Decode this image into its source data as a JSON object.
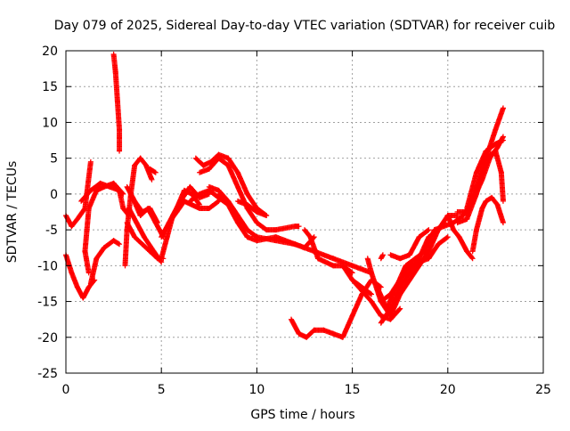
{
  "chart_data": {
    "type": "scatter",
    "title": "Day 079 of 2025, Sidereal Day-to-day VTEC variation (SDTVAR) for receiver cuib",
    "xlabel": "GPS time / hours",
    "ylabel": "SDTVAR / TECUs",
    "xlim": [
      0,
      25
    ],
    "ylim": [
      -25,
      20
    ],
    "xticks": [
      0,
      5,
      10,
      15,
      20,
      25
    ],
    "yticks": [
      -25,
      -20,
      -15,
      -10,
      -5,
      0,
      5,
      10,
      15,
      20
    ],
    "grid": true,
    "marker": "plus",
    "series_color": "#ff0000",
    "tracks": [
      [
        [
          0,
          -3
        ],
        [
          0.3,
          -4.5
        ],
        [
          0.6,
          -3.5
        ],
        [
          1.0,
          -2
        ],
        [
          1.3,
          4.5
        ]
      ],
      [
        [
          0,
          -8.5
        ],
        [
          0.3,
          -11
        ],
        [
          0.6,
          -13
        ],
        [
          0.9,
          -14.5
        ],
        [
          1.2,
          -13
        ],
        [
          1.5,
          -12
        ]
      ],
      [
        [
          1.3,
          -12.5
        ],
        [
          1.6,
          -9
        ],
        [
          2.0,
          -7.5
        ],
        [
          2.5,
          -6.5
        ],
        [
          2.8,
          -7
        ]
      ],
      [
        [
          1.2,
          -11
        ],
        [
          1.0,
          -8
        ],
        [
          1.2,
          -2
        ],
        [
          1.6,
          0.5
        ],
        [
          2.0,
          1
        ],
        [
          2.5,
          1.5
        ],
        [
          3.0,
          0
        ]
      ],
      [
        [
          0.8,
          -1
        ],
        [
          1.3,
          0.5
        ],
        [
          1.8,
          1.5
        ],
        [
          2.3,
          1
        ],
        [
          2.8,
          0.5
        ],
        [
          3.0,
          -2
        ],
        [
          3.3,
          -3
        ]
      ],
      [
        [
          2.5,
          19.5
        ],
        [
          2.6,
          17
        ],
        [
          2.7,
          13
        ],
        [
          2.8,
          9
        ],
        [
          2.8,
          6
        ]
      ],
      [
        [
          3.1,
          -10
        ],
        [
          3.2,
          -5
        ],
        [
          3.4,
          0
        ],
        [
          3.6,
          4
        ],
        [
          3.9,
          5
        ],
        [
          4.2,
          4
        ],
        [
          4.5,
          2
        ]
      ],
      [
        [
          4.4,
          3.5
        ],
        [
          4.7,
          3
        ]
      ],
      [
        [
          3.2,
          -4
        ],
        [
          3.6,
          -6
        ],
        [
          4.0,
          -7
        ],
        [
          4.4,
          -8
        ],
        [
          4.8,
          -9
        ],
        [
          5.1,
          -9
        ]
      ],
      [
        [
          3.3,
          -2
        ],
        [
          3.7,
          -4
        ],
        [
          4.1,
          -6
        ],
        [
          4.6,
          -8
        ],
        [
          5.0,
          -9.5
        ]
      ],
      [
        [
          3.5,
          -0.5
        ],
        [
          3.9,
          -3
        ],
        [
          4.3,
          -2
        ],
        [
          4.7,
          -4
        ],
        [
          5.1,
          -6
        ]
      ],
      [
        [
          3.2,
          1
        ],
        [
          3.6,
          -1
        ],
        [
          4.0,
          -2.5
        ],
        [
          4.4,
          -2
        ],
        [
          4.8,
          -4
        ]
      ],
      [
        [
          5.0,
          -9
        ],
        [
          5.3,
          -6
        ],
        [
          5.6,
          -3
        ],
        [
          6.0,
          -1
        ],
        [
          6.5,
          1
        ],
        [
          7.0,
          -0.5
        ],
        [
          7.5,
          0
        ]
      ],
      [
        [
          5.0,
          -6
        ],
        [
          5.4,
          -4
        ],
        [
          5.8,
          -2
        ],
        [
          6.2,
          0.5
        ],
        [
          6.6,
          0
        ],
        [
          7.0,
          -1.5
        ]
      ],
      [
        [
          5.4,
          -4
        ],
        [
          5.8,
          -2.5
        ],
        [
          6.2,
          -1
        ],
        [
          6.6,
          -1.5
        ],
        [
          7.0,
          -2
        ],
        [
          7.5,
          -2
        ],
        [
          8.0,
          -1
        ]
      ],
      [
        [
          6.5,
          -1
        ],
        [
          7.0,
          0
        ],
        [
          7.5,
          0.5
        ],
        [
          8.0,
          -0.5
        ],
        [
          8.5,
          -1.5
        ]
      ],
      [
        [
          6.8,
          5
        ],
        [
          7.2,
          4
        ],
        [
          7.6,
          4.5
        ],
        [
          8.0,
          5.5
        ],
        [
          8.5,
          5
        ],
        [
          9.0,
          3
        ],
        [
          9.5,
          0
        ],
        [
          10.0,
          -2
        ],
        [
          10.5,
          -3
        ]
      ],
      [
        [
          7.0,
          3
        ],
        [
          7.5,
          3.5
        ],
        [
          8.0,
          5
        ],
        [
          8.5,
          4
        ],
        [
          9.0,
          1
        ],
        [
          9.5,
          -2
        ],
        [
          10.0,
          -4
        ],
        [
          10.5,
          -5
        ],
        [
          11.0,
          -5
        ],
        [
          12.0,
          -4.5
        ],
        [
          12.2,
          -4.5
        ]
      ],
      [
        [
          7.5,
          1
        ],
        [
          8.0,
          0.5
        ],
        [
          8.5,
          -1
        ],
        [
          9.0,
          -3
        ],
        [
          9.5,
          -5
        ],
        [
          10.0,
          -6
        ],
        [
          11.0,
          -6.5
        ],
        [
          12.0,
          -7
        ],
        [
          13.0,
          -8
        ],
        [
          14.0,
          -9
        ],
        [
          15.0,
          -10
        ],
        [
          16.0,
          -11
        ]
      ],
      [
        [
          8.0,
          0
        ],
        [
          8.5,
          -1.5
        ],
        [
          9.0,
          -4
        ],
        [
          9.5,
          -6
        ],
        [
          10.0,
          -6.5
        ],
        [
          11.0,
          -6
        ],
        [
          12.0,
          -7
        ],
        [
          12.5,
          -7.5
        ],
        [
          13.0,
          -6
        ]
      ],
      [
        [
          9.0,
          -1
        ],
        [
          9.5,
          -1.5
        ],
        [
          10.0,
          -2.5
        ],
        [
          10.5,
          -3
        ]
      ],
      [
        [
          12.5,
          -5
        ],
        [
          12.8,
          -6
        ],
        [
          13.2,
          -9
        ],
        [
          14.0,
          -10
        ],
        [
          14.5,
          -10
        ],
        [
          15.0,
          -11
        ]
      ],
      [
        [
          14.5,
          -10
        ],
        [
          15.0,
          -12
        ],
        [
          15.5,
          -13
        ],
        [
          16.0,
          -14
        ]
      ],
      [
        [
          11.8,
          -17.5
        ],
        [
          12.2,
          -19.5
        ],
        [
          12.6,
          -20
        ],
        [
          13.0,
          -19
        ],
        [
          13.5,
          -19
        ],
        [
          14.0,
          -19.5
        ],
        [
          14.5,
          -20
        ],
        [
          15.0,
          -17
        ],
        [
          15.5,
          -14
        ],
        [
          16.0,
          -12
        ],
        [
          16.5,
          -13
        ]
      ],
      [
        [
          15.0,
          -12
        ],
        [
          15.5,
          -13.5
        ],
        [
          16.0,
          -15
        ],
        [
          16.5,
          -17
        ],
        [
          17.0,
          -17.5
        ],
        [
          17.5,
          -16
        ]
      ],
      [
        [
          15.8,
          -9
        ],
        [
          16.0,
          -11
        ],
        [
          16.5,
          -15
        ],
        [
          17.0,
          -17
        ],
        [
          17.5,
          -14
        ],
        [
          18.0,
          -12
        ],
        [
          18.5,
          -10
        ],
        [
          19.0,
          -8
        ],
        [
          19.5,
          -5
        ],
        [
          19.8,
          -4
        ]
      ],
      [
        [
          16.3,
          -13
        ],
        [
          16.8,
          -16
        ],
        [
          17.3,
          -13
        ],
        [
          17.8,
          -10
        ],
        [
          18.3,
          -9
        ],
        [
          18.8,
          -8
        ],
        [
          19.3,
          -5
        ],
        [
          19.8,
          -4.5
        ],
        [
          20.3,
          -4
        ],
        [
          20.8,
          -3
        ]
      ],
      [
        [
          16.5,
          -18
        ],
        [
          17.0,
          -16
        ],
        [
          17.5,
          -13
        ],
        [
          18.0,
          -11
        ],
        [
          18.5,
          -9
        ],
        [
          19.0,
          -6
        ],
        [
          19.5,
          -5
        ],
        [
          20.0,
          -3
        ],
        [
          20.5,
          -3
        ]
      ],
      [
        [
          16.5,
          -15
        ],
        [
          17.0,
          -14
        ],
        [
          17.5,
          -12
        ],
        [
          18.0,
          -10
        ],
        [
          18.5,
          -9.5
        ],
        [
          19.0,
          -9
        ],
        [
          19.5,
          -7
        ],
        [
          20.0,
          -6
        ]
      ],
      [
        [
          17.0,
          -8.5
        ],
        [
          17.5,
          -9
        ],
        [
          18.0,
          -8.5
        ],
        [
          18.5,
          -6
        ],
        [
          19.0,
          -5
        ]
      ],
      [
        [
          16.5,
          -9
        ],
        [
          16.6,
          -8.5
        ]
      ],
      [
        [
          20.0,
          -3
        ],
        [
          20.3,
          -5
        ],
        [
          20.6,
          -6
        ],
        [
          21.0,
          -8
        ],
        [
          21.3,
          -9
        ]
      ],
      [
        [
          21.3,
          -8
        ],
        [
          21.5,
          -5
        ],
        [
          21.8,
          -2
        ],
        [
          22.0,
          -1
        ],
        [
          22.3,
          -0.5
        ],
        [
          22.6,
          -1.5
        ],
        [
          22.9,
          -4
        ]
      ],
      [
        [
          20.5,
          -2.5
        ],
        [
          21.0,
          -2.5
        ],
        [
          21.5,
          1
        ],
        [
          22.0,
          5
        ],
        [
          22.5,
          6
        ],
        [
          22.8,
          3
        ],
        [
          22.9,
          -1
        ]
      ],
      [
        [
          20.8,
          -3
        ],
        [
          21.3,
          -1
        ],
        [
          21.8,
          2
        ],
        [
          22.2,
          5
        ],
        [
          22.6,
          6.5
        ],
        [
          22.9,
          8
        ]
      ],
      [
        [
          20.5,
          -4
        ],
        [
          21.0,
          -3.5
        ],
        [
          21.5,
          0
        ],
        [
          22.0,
          5
        ],
        [
          22.5,
          9
        ],
        [
          22.9,
          12
        ]
      ],
      [
        [
          21.0,
          -2
        ],
        [
          21.5,
          3
        ],
        [
          22.0,
          6
        ],
        [
          22.5,
          7
        ],
        [
          22.9,
          7.5
        ]
      ]
    ]
  }
}
